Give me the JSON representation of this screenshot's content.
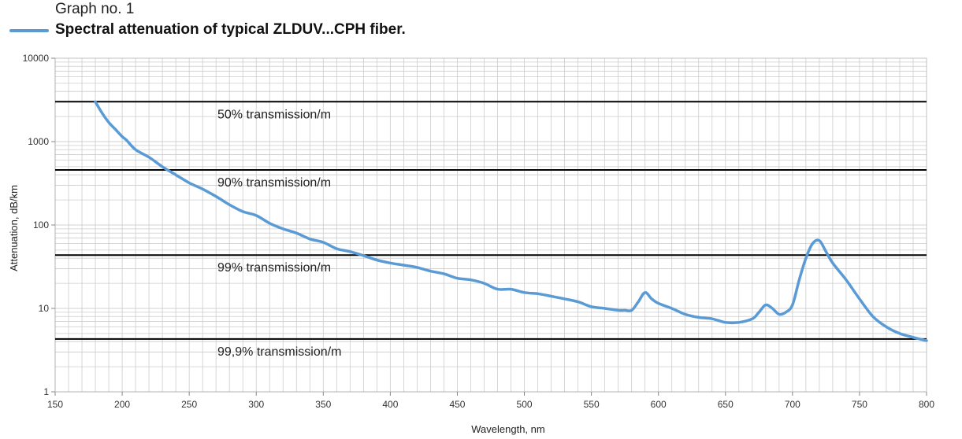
{
  "header": {
    "graph_no": "Graph no. 1",
    "legend_title": "Spectral attenuation of typical ZLDUV...CPH fiber."
  },
  "colors": {
    "series": "#5b9bd5",
    "grid": "#cccccc",
    "reference_line": "#000000"
  },
  "chart_data": {
    "type": "line",
    "title": "Spectral attenuation of typical ZLDUV...CPH fiber.",
    "xlabel": "Wavelength, nm",
    "ylabel": "Attenuation, dB/km",
    "xlim": [
      150,
      800
    ],
    "ylim": [
      1,
      10000
    ],
    "yscale": "log",
    "grid": true,
    "legend": "top-left",
    "x_ticks": [
      150,
      200,
      250,
      300,
      350,
      400,
      450,
      500,
      550,
      600,
      650,
      700,
      750,
      800
    ],
    "y_ticks": [
      {
        "value": 1,
        "label": "1"
      },
      {
        "value": 10,
        "label": "10"
      },
      {
        "value": 100,
        "label": "100"
      },
      {
        "value": 1000,
        "label": "1000"
      },
      {
        "value": 10000,
        "label": "10000"
      }
    ],
    "reference_lines": [
      {
        "y": 3010,
        "label": "50% transmission/m"
      },
      {
        "y": 458,
        "label": "90% transmission/m"
      },
      {
        "y": 43.6,
        "label": "99% transmission/m"
      },
      {
        "y": 4.3,
        "label": "99,9% transmission/m"
      }
    ],
    "series": [
      {
        "name": "Spectral attenuation of typical ZLDUV...CPH fiber.",
        "x": [
          180,
          185,
          190,
          195,
          200,
          203,
          210,
          220,
          230,
          240,
          250,
          260,
          270,
          280,
          290,
          300,
          310,
          320,
          330,
          340,
          350,
          360,
          370,
          380,
          390,
          400,
          410,
          420,
          430,
          440,
          450,
          460,
          470,
          480,
          490,
          500,
          510,
          520,
          530,
          540,
          550,
          560,
          570,
          575,
          580,
          585,
          590,
          595,
          600,
          610,
          620,
          630,
          640,
          650,
          660,
          670,
          675,
          680,
          685,
          690,
          695,
          700,
          705,
          710,
          715,
          720,
          725,
          730,
          740,
          750,
          760,
          770,
          780,
          790,
          800
        ],
        "y": [
          3000,
          2200,
          1700,
          1400,
          1150,
          1050,
          800,
          650,
          500,
          400,
          320,
          270,
          220,
          175,
          145,
          130,
          105,
          90,
          80,
          68,
          62,
          52,
          48,
          43,
          38,
          35,
          33,
          31,
          28,
          26,
          23,
          22,
          20,
          17,
          17,
          15.5,
          15,
          14,
          13,
          12,
          10.5,
          10,
          9.5,
          9.5,
          9.5,
          12,
          15.5,
          13,
          11.5,
          10,
          8.5,
          7.8,
          7.5,
          6.8,
          6.8,
          7.5,
          9,
          11,
          10,
          8.5,
          9,
          11,
          22,
          40,
          60,
          65,
          48,
          35,
          22,
          13,
          8,
          6,
          5,
          4.5,
          4.1
        ]
      }
    ]
  }
}
